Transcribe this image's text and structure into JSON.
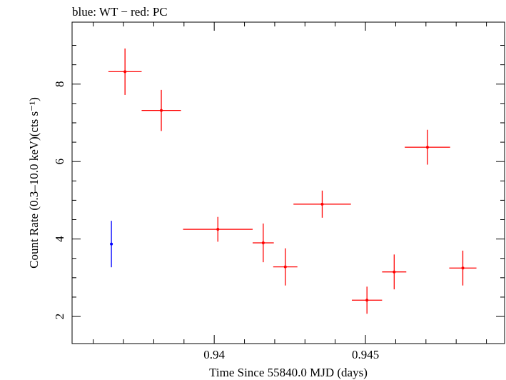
{
  "header": {
    "title": "blue: WT − red: PC"
  },
  "chart_data": {
    "type": "scatter",
    "xlabel": "Time Since 55840.0 MJD (days)",
    "ylabel": "Count Rate (0.3–10.0 keV)(cts s⁻¹)",
    "xlim": [
      0.9353,
      0.9496
    ],
    "ylim": [
      1.3,
      9.6
    ],
    "xticks": [
      0.94,
      0.945
    ],
    "yticks": [
      2,
      4,
      6,
      8
    ],
    "xtick_labels": [
      "0.94",
      "0.945"
    ],
    "ytick_labels": [
      "2",
      "4",
      "6",
      "8"
    ],
    "series": [
      {
        "name": "WT",
        "color": "#0000ff",
        "points": [
          {
            "x": 0.9366,
            "y": 3.87,
            "xerr": 3e-05,
            "yerr": 0.6
          }
        ]
      },
      {
        "name": "PC",
        "color": "#ff0000",
        "points": [
          {
            "x": 0.93705,
            "y": 8.32,
            "xerr": 0.00055,
            "yerr": 0.6
          },
          {
            "x": 0.93825,
            "y": 7.32,
            "xerr": 0.00065,
            "yerr": 0.53
          },
          {
            "x": 0.94012,
            "y": 4.25,
            "xerr": 0.00115,
            "yerr": 0.32
          },
          {
            "x": 0.94162,
            "y": 3.9,
            "xerr": 0.00035,
            "yerr": 0.5
          },
          {
            "x": 0.94235,
            "y": 3.28,
            "xerr": 0.0004,
            "yerr": 0.48
          },
          {
            "x": 0.94357,
            "y": 4.9,
            "xerr": 0.00095,
            "yerr": 0.35
          },
          {
            "x": 0.94505,
            "y": 2.42,
            "xerr": 0.0005,
            "yerr": 0.35
          },
          {
            "x": 0.94595,
            "y": 3.15,
            "xerr": 0.0004,
            "yerr": 0.45
          },
          {
            "x": 0.94705,
            "y": 6.37,
            "xerr": 0.00075,
            "yerr": 0.45
          },
          {
            "x": 0.94822,
            "y": 3.25,
            "xerr": 0.00045,
            "yerr": 0.45
          }
        ]
      }
    ],
    "grid": false
  }
}
